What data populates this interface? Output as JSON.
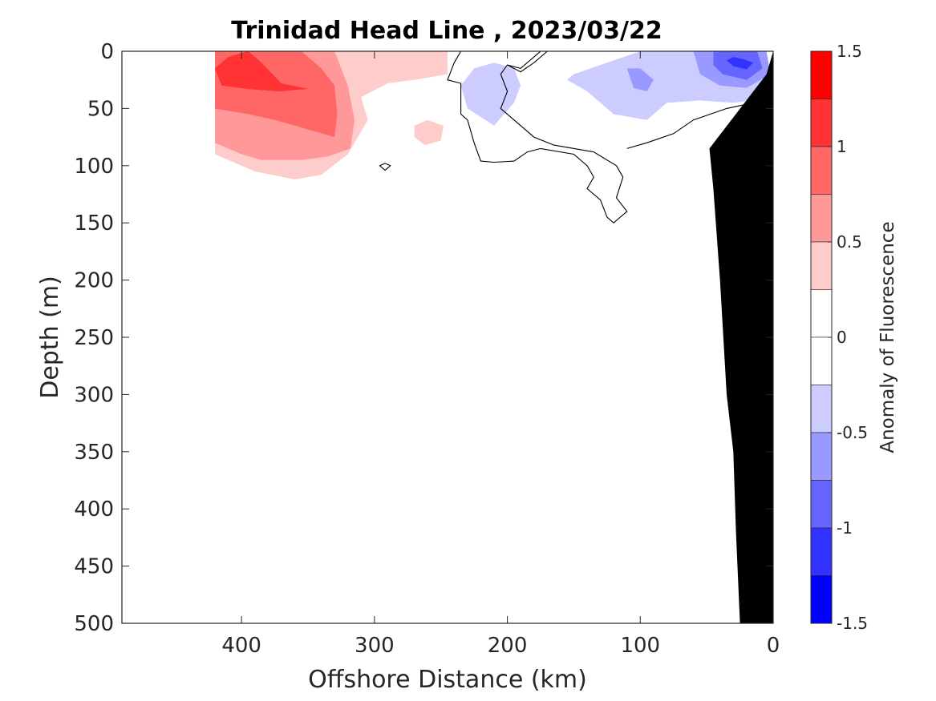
{
  "chart_data": {
    "type": "heatmap",
    "title": "Trinidad Head Line , 2023/03/22",
    "xlabel": "Offshore Distance (km)",
    "ylabel": "Depth (m)",
    "xlim": [
      490,
      0
    ],
    "ylim": [
      0,
      500
    ],
    "x_ticks": [
      "400",
      "300",
      "200",
      "100",
      "0"
    ],
    "x_tick_values": [
      400,
      300,
      200,
      100,
      0
    ],
    "y_ticks": [
      "0",
      "50",
      "100",
      "150",
      "200",
      "250",
      "300",
      "350",
      "400",
      "450",
      "500"
    ],
    "y_tick_values": [
      0,
      50,
      100,
      150,
      200,
      250,
      300,
      350,
      400,
      450,
      500
    ],
    "colorbar": {
      "label": "Anomaly of Fluorescence",
      "range": [
        -1.5,
        1.5
      ],
      "tick_labels": [
        "1.5",
        "1",
        "0.5",
        "0",
        "-0.5",
        "-1",
        "-1.5"
      ],
      "tick_values": [
        1.5,
        1,
        0.5,
        0,
        -0.5,
        -1,
        -1.5
      ],
      "levels": [
        {
          "from": 1.25,
          "to": 1.5,
          "color": "#ff0000"
        },
        {
          "from": 1.0,
          "to": 1.25,
          "color": "#ff3333"
        },
        {
          "from": 0.75,
          "to": 1.0,
          "color": "#ff6666"
        },
        {
          "from": 0.5,
          "to": 0.75,
          "color": "#ff9999"
        },
        {
          "from": 0.25,
          "to": 0.5,
          "color": "#ffcccc"
        },
        {
          "from": 0.0,
          "to": 0.25,
          "color": "#ffffff"
        },
        {
          "from": -0.25,
          "to": 0.0,
          "color": "#ffffff"
        },
        {
          "from": -0.5,
          "to": -0.25,
          "color": "#ccccff"
        },
        {
          "from": -0.75,
          "to": -0.5,
          "color": "#9999ff"
        },
        {
          "from": -1.0,
          "to": -0.75,
          "color": "#6666ff"
        },
        {
          "from": -1.25,
          "to": -1.0,
          "color": "#3333ff"
        },
        {
          "from": -1.5,
          "to": -1.25,
          "color": "#0000ff"
        }
      ]
    },
    "regions": [
      {
        "level": 0.375,
        "color": "#ffcccc",
        "points": [
          [
            420,
            0
          ],
          [
            245,
            0
          ],
          [
            245,
            20
          ],
          [
            270,
            25
          ],
          [
            290,
            28
          ],
          [
            310,
            40
          ],
          [
            305,
            60
          ],
          [
            320,
            90
          ],
          [
            340,
            108
          ],
          [
            360,
            112
          ],
          [
            390,
            105
          ],
          [
            420,
            90
          ]
        ]
      },
      {
        "level": 0.625,
        "color": "#ff9999",
        "points": [
          [
            420,
            0
          ],
          [
            330,
            0
          ],
          [
            320,
            30
          ],
          [
            315,
            60
          ],
          [
            318,
            85
          ],
          [
            335,
            92
          ],
          [
            355,
            95
          ],
          [
            385,
            95
          ],
          [
            400,
            90
          ],
          [
            420,
            80
          ]
        ]
      },
      {
        "level": 0.875,
        "color": "#ff6666",
        "points": [
          [
            420,
            0
          ],
          [
            355,
            0
          ],
          [
            340,
            15
          ],
          [
            330,
            30
          ],
          [
            328,
            55
          ],
          [
            330,
            75
          ],
          [
            345,
            70
          ],
          [
            360,
            65
          ],
          [
            375,
            60
          ],
          [
            395,
            55
          ],
          [
            420,
            50
          ]
        ]
      },
      {
        "level": 1.125,
        "color": "#ff3333",
        "points": [
          [
            410,
            5
          ],
          [
            395,
            0
          ],
          [
            385,
            10
          ],
          [
            370,
            28
          ],
          [
            350,
            33
          ],
          [
            372,
            35
          ],
          [
            395,
            33
          ],
          [
            415,
            30
          ],
          [
            420,
            15
          ]
        ]
      },
      {
        "level": 0.375,
        "color": "#ffcccc",
        "points": [
          [
            260,
            60
          ],
          [
            270,
            65
          ],
          [
            270,
            75
          ],
          [
            262,
            82
          ],
          [
            250,
            78
          ],
          [
            248,
            65
          ]
        ]
      },
      {
        "level": 0.375,
        "color": "#ffcccc",
        "points": [
          [
            27,
            328
          ],
          [
            22,
            332
          ],
          [
            24,
            336
          ],
          [
            29,
            333
          ]
        ]
      },
      {
        "level": -0.375,
        "color": "#ccccff",
        "points": [
          [
            210,
            10
          ],
          [
            225,
            15
          ],
          [
            235,
            30
          ],
          [
            230,
            50
          ],
          [
            210,
            65
          ],
          [
            195,
            45
          ],
          [
            190,
            30
          ],
          [
            195,
            15
          ]
        ]
      },
      {
        "level": -0.375,
        "color": "#ccccff",
        "points": [
          [
            150,
            20
          ],
          [
            130,
            12
          ],
          [
            100,
            0
          ],
          [
            10,
            0
          ],
          [
            2,
            30
          ],
          [
            10,
            42
          ],
          [
            30,
            45
          ],
          [
            55,
            43
          ],
          [
            80,
            45
          ],
          [
            95,
            60
          ],
          [
            120,
            55
          ],
          [
            140,
            35
          ],
          [
            155,
            25
          ]
        ]
      },
      {
        "level": -0.625,
        "color": "#9999ff",
        "points": [
          [
            110,
            15
          ],
          [
            100,
            15
          ],
          [
            90,
            25
          ],
          [
            95,
            35
          ],
          [
            105,
            32
          ]
        ]
      },
      {
        "level": -0.625,
        "color": "#9999ff",
        "points": [
          [
            60,
            0
          ],
          [
            5,
            0
          ],
          [
            2,
            20
          ],
          [
            20,
            32
          ],
          [
            40,
            30
          ],
          [
            55,
            20
          ]
        ]
      },
      {
        "level": -0.875,
        "color": "#6666ff",
        "points": [
          [
            45,
            0
          ],
          [
            12,
            0
          ],
          [
            8,
            15
          ],
          [
            20,
            25
          ],
          [
            38,
            20
          ],
          [
            45,
            12
          ]
        ]
      },
      {
        "level": -1.125,
        "color": "#3333ff",
        "points": [
          [
            30,
            5
          ],
          [
            22,
            7
          ],
          [
            15,
            10
          ],
          [
            20,
            16
          ],
          [
            30,
            13
          ],
          [
            35,
            8
          ]
        ]
      }
    ],
    "zero_contours": [
      {
        "points": [
          [
            235,
            0
          ],
          [
            240,
            10
          ],
          [
            245,
            25
          ],
          [
            235,
            28
          ],
          [
            235,
            55
          ],
          [
            230,
            60
          ],
          [
            225,
            80
          ],
          [
            220,
            96
          ],
          [
            210,
            97
          ],
          [
            195,
            96
          ],
          [
            185,
            88
          ],
          [
            175,
            85
          ],
          [
            150,
            90
          ],
          [
            140,
            100
          ],
          [
            135,
            110
          ],
          [
            140,
            120
          ],
          [
            130,
            130
          ],
          [
            125,
            145
          ],
          [
            120,
            150
          ],
          [
            110,
            140
          ],
          [
            118,
            128
          ],
          [
            113,
            110
          ],
          [
            118,
            100
          ],
          [
            135,
            88
          ],
          [
            165,
            82
          ],
          [
            180,
            75
          ],
          [
            195,
            60
          ],
          [
            205,
            50
          ],
          [
            200,
            35
          ],
          [
            205,
            20
          ],
          [
            200,
            12
          ],
          [
            190,
            18
          ],
          [
            180,
            10
          ],
          [
            170,
            0
          ]
        ]
      },
      {
        "points": [
          [
            175,
            0
          ],
          [
            180,
            5
          ],
          [
            190,
            15
          ],
          [
            200,
            12
          ]
        ]
      },
      {
        "points": [
          [
            2,
            45
          ],
          [
            15,
            45
          ],
          [
            35,
            50
          ],
          [
            60,
            60
          ],
          [
            75,
            72
          ],
          [
            95,
            80
          ],
          [
            110,
            85
          ]
        ]
      },
      {
        "points": [
          [
            292,
            98
          ],
          [
            288,
            100
          ],
          [
            292,
            104
          ],
          [
            296,
            100
          ],
          [
            292,
            98
          ]
        ]
      }
    ],
    "bathymetry": {
      "color": "#000000",
      "points": [
        [
          0,
          0
        ],
        [
          0,
          500
        ],
        [
          25,
          500
        ],
        [
          28,
          420
        ],
        [
          30,
          350
        ],
        [
          35,
          300
        ],
        [
          40,
          200
        ],
        [
          45,
          120
        ],
        [
          48,
          85
        ],
        [
          5,
          20
        ],
        [
          0,
          0
        ]
      ]
    }
  }
}
